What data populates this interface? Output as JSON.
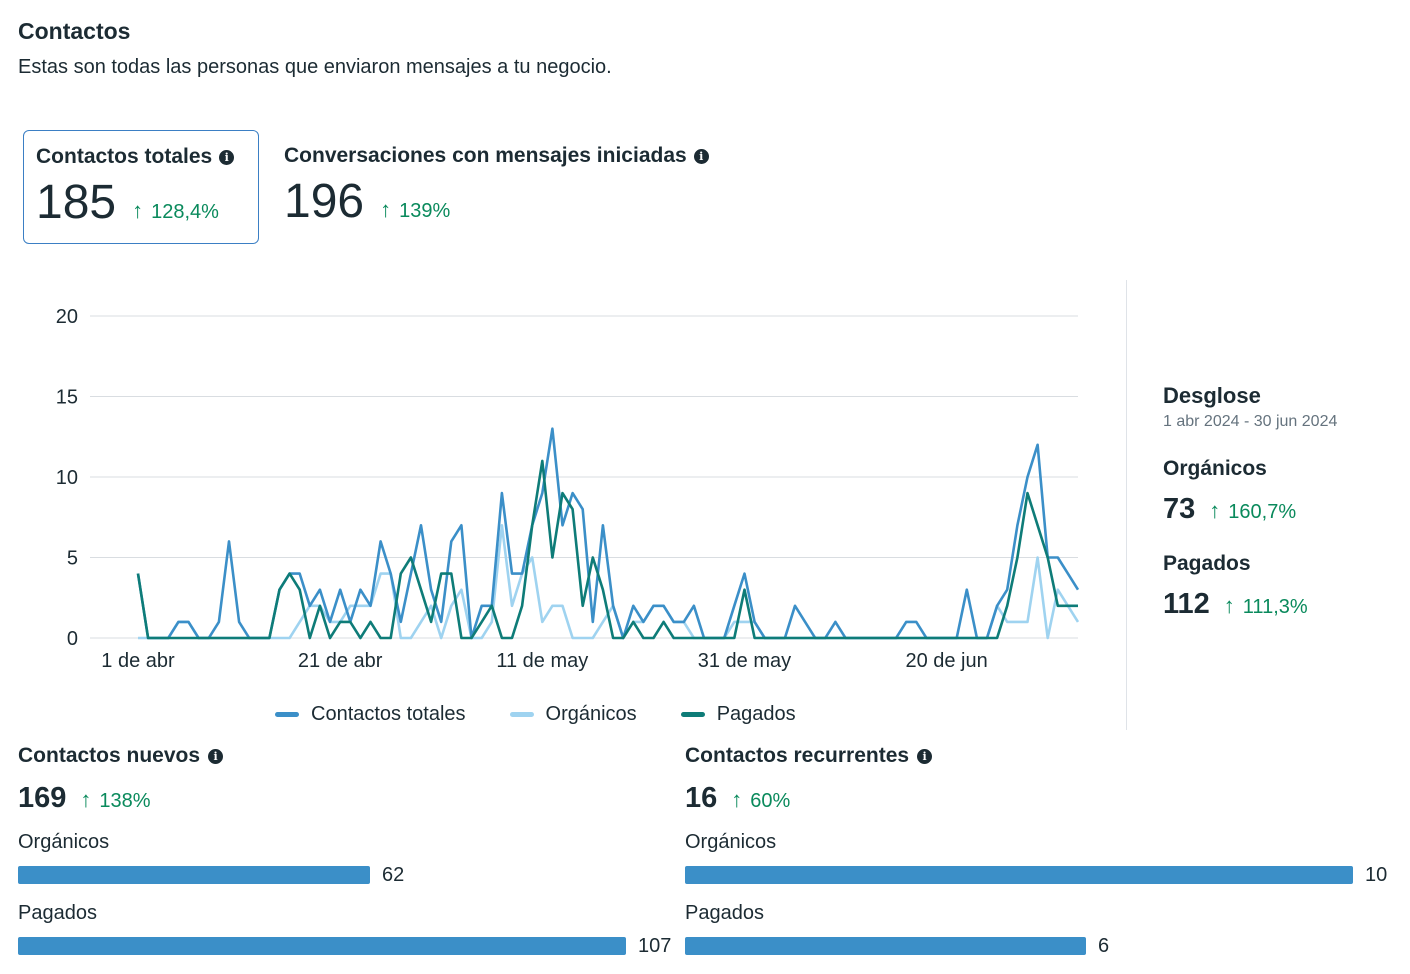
{
  "header": {
    "title": "Contactos",
    "subtitle": "Estas son todas las personas que enviaron mensajes a tu negocio."
  },
  "metrics": [
    {
      "label": "Contactos totales",
      "value": "185",
      "change": "128,4%"
    },
    {
      "label": "Conversaciones con mensajes iniciadas",
      "value": "196",
      "change": "139%"
    }
  ],
  "chart_data": {
    "type": "line",
    "ylim": [
      0,
      20
    ],
    "yticks": [
      "0",
      "5",
      "10",
      "15",
      "20"
    ],
    "xtick_labels": [
      "1 de abr",
      "21 de abr",
      "11 de may",
      "31 de may",
      "20 de jun"
    ],
    "xtick_indices": [
      0,
      20,
      40,
      60,
      80
    ],
    "grid": true,
    "legend_position": "bottom",
    "series": [
      {
        "name": "Contactos totales",
        "color": "#3b8fc8",
        "values": [
          4,
          0,
          0,
          0,
          1,
          1,
          0,
          0,
          1,
          6,
          1,
          0,
          0,
          0,
          3,
          4,
          4,
          2,
          3,
          1,
          3,
          1,
          3,
          2,
          6,
          4,
          1,
          4,
          7,
          3,
          1,
          6,
          7,
          0,
          2,
          2,
          9,
          4,
          4,
          7,
          9,
          13,
          7,
          9,
          8,
          1,
          7,
          2,
          0,
          2,
          1,
          2,
          2,
          1,
          1,
          2,
          0,
          0,
          0,
          2,
          4,
          1,
          0,
          0,
          0,
          2,
          1,
          0,
          0,
          1,
          0,
          0,
          0,
          0,
          0,
          0,
          1,
          1,
          0,
          0,
          0,
          0,
          3,
          0,
          0,
          2,
          3,
          7,
          10,
          12,
          5,
          5,
          4,
          3
        ]
      },
      {
        "name": "Orgánicos",
        "color": "#9fd3f0",
        "values": [
          0,
          0,
          0,
          0,
          1,
          1,
          0,
          0,
          0,
          0,
          0,
          0,
          0,
          0,
          0,
          0,
          1,
          2,
          2,
          1,
          1,
          2,
          2,
          2,
          4,
          4,
          0,
          0,
          1,
          2,
          0,
          2,
          3,
          0,
          0,
          1,
          7,
          2,
          4,
          5,
          1,
          2,
          2,
          0,
          0,
          0,
          1,
          2,
          0,
          1,
          1,
          2,
          2,
          1,
          1,
          0,
          0,
          0,
          0,
          1,
          1,
          1,
          0,
          0,
          0,
          0,
          0,
          0,
          0,
          0,
          0,
          0,
          0,
          0,
          0,
          0,
          0,
          0,
          0,
          0,
          0,
          0,
          0,
          0,
          0,
          2,
          1,
          1,
          1,
          5,
          0,
          3,
          2,
          1
        ]
      },
      {
        "name": "Pagados",
        "color": "#0e7c78",
        "values": [
          4,
          0,
          0,
          0,
          0,
          0,
          0,
          0,
          0,
          0,
          0,
          0,
          0,
          0,
          3,
          4,
          3,
          0,
          2,
          0,
          1,
          1,
          0,
          1,
          0,
          0,
          4,
          5,
          3,
          1,
          4,
          4,
          0,
          0,
          1,
          2,
          0,
          0,
          2,
          7,
          11,
          5,
          9,
          8,
          2,
          5,
          3,
          0,
          0,
          1,
          0,
          0,
          1,
          0,
          0,
          0,
          0,
          0,
          0,
          0,
          3,
          0,
          0,
          0,
          0,
          0,
          0,
          0,
          0,
          0,
          0,
          0,
          0,
          0,
          0,
          0,
          0,
          0,
          0,
          0,
          0,
          0,
          0,
          0,
          0,
          0,
          2,
          5,
          9,
          7,
          5,
          2,
          2,
          2
        ]
      }
    ]
  },
  "breakdown": {
    "title": "Desglose",
    "range": "1 abr 2024 - 30 jun 2024",
    "items": [
      {
        "label": "Orgánicos",
        "value": "73",
        "change": "160,7%"
      },
      {
        "label": "Pagados",
        "value": "112",
        "change": "111,3%"
      }
    ]
  },
  "new_contacts": {
    "title": "Contactos nuevos",
    "value": "169",
    "change": "138%",
    "bars": [
      {
        "label": "Orgánicos",
        "value": 62,
        "display": "62"
      },
      {
        "label": "Pagados",
        "value": 107,
        "display": "107"
      }
    ],
    "max": 107
  },
  "recurring_contacts": {
    "title": "Contactos recurrentes",
    "value": "16",
    "change": "60%",
    "bars": [
      {
        "label": "Orgánicos",
        "value": 10,
        "display": "10"
      },
      {
        "label": "Pagados",
        "value": 6,
        "display": "6"
      }
    ],
    "max": 10
  }
}
